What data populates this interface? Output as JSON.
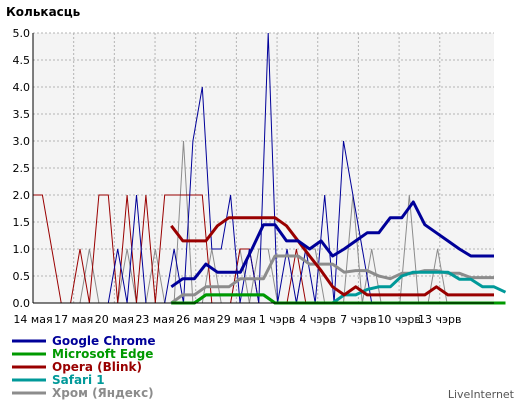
{
  "chart_data": {
    "type": "line",
    "title": "Колькасць",
    "credit": "LiveInternet",
    "ylim": [
      0,
      5
    ],
    "yticks": [
      "0.0",
      "0.5",
      "1.0",
      "1.5",
      "2.0",
      "2.5",
      "3.0",
      "3.5",
      "4.0",
      "4.5",
      "5.0"
    ],
    "xlim": [
      0,
      34
    ],
    "xticks": [
      {
        "day": 0,
        "label": "14 мая"
      },
      {
        "day": 3,
        "label": "17 мая"
      },
      {
        "day": 6,
        "label": "20 мая"
      },
      {
        "day": 9,
        "label": "23 мая"
      },
      {
        "day": 12,
        "label": "26 мая"
      },
      {
        "day": 15,
        "label": "29 мая"
      },
      {
        "day": 18,
        "label": "1 чэрв"
      },
      {
        "day": 21,
        "label": "4 чэрв"
      },
      {
        "day": 24,
        "label": "7 чэрв"
      },
      {
        "day": 27,
        "label": "10 чэрв"
      },
      {
        "day": 30,
        "label": "13 чэрв"
      }
    ],
    "grid": true,
    "legend_position": "bottom-left",
    "series": [
      {
        "name": "Хром (Яндекс)",
        "color": "#8c8c8c",
        "thin": [
          0,
          0,
          0,
          0,
          0,
          0,
          1,
          0,
          0,
          0,
          1,
          0,
          0,
          1,
          0,
          0,
          3,
          0,
          0,
          1,
          0,
          0,
          1,
          0,
          1,
          1,
          0,
          0,
          0,
          1,
          1,
          0,
          0,
          0,
          2,
          0,
          1,
          0,
          0,
          0,
          2,
          0,
          0,
          1,
          0,
          0,
          0,
          0,
          0,
          0
        ],
        "trend": [
          null,
          null,
          null,
          null,
          null,
          null,
          null,
          null,
          null,
          null,
          null,
          null,
          0,
          0.15,
          0.15,
          0.3,
          0.3,
          0.3,
          0.45,
          0.45,
          0.45,
          0.87,
          0.87,
          0.87,
          0.72,
          0.72,
          0.72,
          0.57,
          0.6,
          0.6,
          0.5,
          0.45,
          0.55,
          0.55,
          0.6,
          0.6,
          0.55,
          0.55,
          0.47,
          0.47,
          0.47
        ]
      },
      {
        "name": "Safari 1",
        "color": "#009999",
        "thin": [
          0,
          0,
          0,
          0,
          0,
          0,
          0,
          0,
          0,
          0,
          0,
          0,
          0,
          0,
          0,
          0,
          0,
          0,
          0,
          0,
          0,
          0,
          0,
          0,
          0,
          0,
          0,
          0,
          0,
          0,
          0,
          0,
          0,
          0,
          0,
          0,
          0,
          0,
          0,
          0,
          0,
          0,
          0,
          0,
          0,
          0,
          0,
          0,
          0,
          0
        ],
        "trend": [
          null,
          null,
          null,
          null,
          null,
          null,
          null,
          null,
          null,
          null,
          null,
          null,
          0,
          0,
          0,
          0.15,
          0.15,
          0.15,
          0.15,
          0.15,
          0.15,
          0,
          0,
          0,
          0,
          0,
          0,
          0.15,
          0.15,
          0.25,
          0.3,
          0.3,
          0.5,
          0.57,
          0.57,
          0.57,
          0.57,
          0.44,
          0.44,
          0.3,
          0.3,
          0.2
        ]
      },
      {
        "name": "Microsoft Edge",
        "color": "#009900",
        "thin": [
          0,
          0,
          0,
          0,
          0,
          0,
          0,
          0,
          0,
          0,
          0,
          0,
          0,
          0,
          0,
          0,
          0,
          0,
          0,
          0,
          0,
          0,
          0,
          0,
          0,
          0,
          0,
          0,
          0,
          0,
          0,
          0,
          0,
          0,
          0,
          0,
          0,
          0,
          0,
          0,
          0,
          0,
          0,
          0,
          0,
          0,
          0,
          0,
          0,
          0
        ],
        "trend": [
          null,
          null,
          null,
          null,
          null,
          null,
          null,
          null,
          null,
          null,
          null,
          null,
          0,
          0,
          0,
          0.15,
          0.15,
          0.15,
          0.15,
          0.15,
          0.15,
          0,
          0,
          0,
          0,
          0,
          0,
          0,
          0,
          0,
          0,
          0,
          0,
          0,
          0,
          0,
          0,
          0,
          0,
          0,
          0,
          0
        ]
      },
      {
        "name": "Opera (Blink)",
        "color": "#990000",
        "thin": [
          2,
          2,
          1,
          0,
          0,
          1,
          0,
          2,
          2,
          0,
          2,
          0,
          2,
          0,
          2,
          2,
          2,
          2,
          2,
          0,
          0,
          0,
          1,
          1,
          0,
          0,
          0,
          0,
          1,
          0,
          0,
          0,
          0,
          0,
          0,
          0,
          0,
          0,
          0,
          0,
          0,
          0,
          0,
          0,
          0,
          0,
          0,
          0,
          0,
          0
        ],
        "trend": [
          null,
          null,
          null,
          null,
          null,
          null,
          null,
          null,
          null,
          null,
          null,
          null,
          1.43,
          1.15,
          1.15,
          1.15,
          1.43,
          1.58,
          1.58,
          1.58,
          1.58,
          1.58,
          1.43,
          1.15,
          0.87,
          0.6,
          0.3,
          0.15,
          0.3,
          0.15,
          0.15,
          0.15,
          0.15,
          0.15,
          0.15,
          0.3,
          0.15,
          0.15,
          0.15,
          0.15,
          0.15
        ]
      },
      {
        "name": "Google Chrome",
        "color": "#000099",
        "thin": [
          0,
          0,
          0,
          0,
          0,
          0,
          0,
          0,
          0,
          1,
          0,
          2,
          0,
          0,
          0,
          1,
          0,
          3,
          4,
          1,
          1,
          2,
          0,
          1,
          0,
          5,
          0,
          1,
          0,
          1,
          0,
          2,
          0,
          3,
          2,
          1,
          0,
          0,
          0,
          0,
          0,
          0,
          0,
          0,
          0,
          0,
          0,
          0,
          0,
          0
        ],
        "trend": [
          null,
          null,
          null,
          null,
          null,
          null,
          null,
          null,
          null,
          null,
          null,
          null,
          0.3,
          0.45,
          0.45,
          0.72,
          0.57,
          0.57,
          0.57,
          1.0,
          1.45,
          1.45,
          1.15,
          1.15,
          1.0,
          1.15,
          0.87,
          1.0,
          1.15,
          1.3,
          1.3,
          1.58,
          1.58,
          1.87,
          1.45,
          1.3,
          1.15,
          1.0,
          0.87,
          0.87,
          0.87
        ]
      }
    ]
  },
  "legend_order": [
    "Google Chrome",
    "Microsoft Edge",
    "Opera (Blink)",
    "Safari 1",
    "Хром (Яндекс)"
  ]
}
